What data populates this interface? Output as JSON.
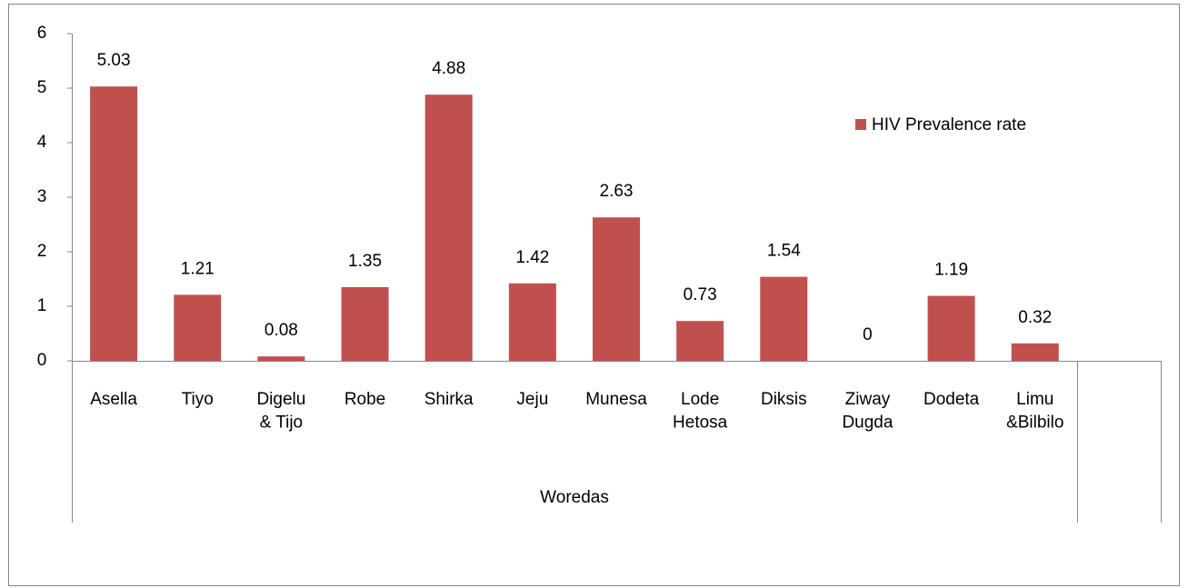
{
  "chart_data": {
    "type": "bar",
    "categories": [
      "Asella",
      "Tiyo",
      "Digelu\n& Tijo",
      "Robe",
      "Shirka",
      "Jeju",
      "Munesa",
      "Lode\nHetosa",
      "Diksis",
      "Ziway\nDugda",
      "Dodeta",
      "Limu\n&Bilbilo",
      null
    ],
    "series": [
      {
        "name": "HIV Prevalence rate",
        "color": "#c0504d",
        "values": [
          5.03,
          1.21,
          0.08,
          1.35,
          4.88,
          1.42,
          2.63,
          0.73,
          1.54,
          0,
          1.19,
          0.32,
          null
        ]
      }
    ],
    "x_group_label": "Woredas",
    "ylim": [
      0,
      6
    ],
    "yticks": [
      0,
      1,
      2,
      3,
      4,
      5,
      6
    ],
    "grid": false,
    "legend": "upper right"
  }
}
